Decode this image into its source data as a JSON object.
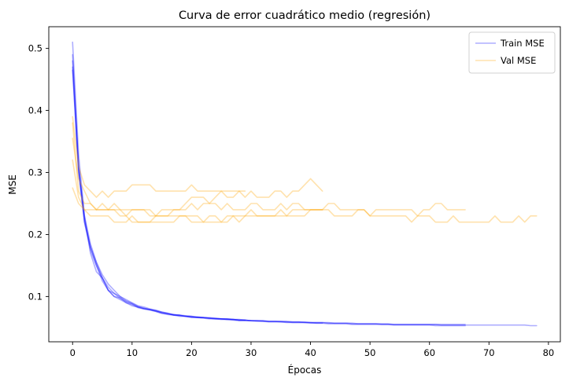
{
  "chart_data": {
    "type": "line",
    "title": "Curva de error cuadrático medio (regresión)",
    "xlabel": "Épocas",
    "ylabel": "MSE",
    "xlim": [
      -4,
      82
    ],
    "ylim": [
      0.027,
      0.535
    ],
    "xticks": [
      0,
      10,
      20,
      30,
      40,
      50,
      60,
      70,
      80
    ],
    "yticks": [
      0.1,
      0.2,
      0.3,
      0.4,
      0.5
    ],
    "grid": false,
    "legend": {
      "position": "top-right",
      "entries": [
        {
          "label": "Train MSE",
          "color": "#0000ff"
        },
        {
          "label": "Val MSE",
          "color": "#ffa500"
        }
      ]
    },
    "series": [
      {
        "group": "Train MSE",
        "color": "#0000ff",
        "values": [
          0.51,
          0.33,
          0.23,
          0.17,
          0.14,
          0.13,
          0.11,
          0.105,
          0.1,
          0.095,
          0.09,
          0.085,
          0.083,
          0.08,
          0.078,
          0.075,
          0.073,
          0.07,
          0.07,
          0.068,
          0.067,
          0.066,
          0.066,
          0.065,
          0.064,
          0.064,
          0.063,
          0.063,
          0.062,
          0.062,
          0.061,
          0.061,
          0.06,
          0.06,
          0.06,
          0.059,
          0.059,
          0.058,
          0.058,
          0.058,
          0.058,
          0.057,
          0.057
        ]
      },
      {
        "group": "Train MSE",
        "color": "#0000ff",
        "values": [
          0.48,
          0.31,
          0.22,
          0.175,
          0.15,
          0.125,
          0.11,
          0.1,
          0.095,
          0.09,
          0.087,
          0.082,
          0.08,
          0.079,
          0.076,
          0.073,
          0.071,
          0.07,
          0.068,
          0.068,
          0.066,
          0.066,
          0.065,
          0.064,
          0.064,
          0.063,
          0.063,
          0.062,
          0.061,
          0.061,
          0.061,
          0.06,
          0.06,
          0.059,
          0.059,
          0.059,
          0.058,
          0.058,
          0.058,
          0.058,
          0.057,
          0.057,
          0.057,
          0.056,
          0.056,
          0.056,
          0.056,
          0.055,
          0.055,
          0.055,
          0.055,
          0.055,
          0.055,
          0.055,
          0.054,
          0.054,
          0.054,
          0.054,
          0.054,
          0.054,
          0.054,
          0.053,
          0.053,
          0.053,
          0.053,
          0.053,
          0.053
        ]
      },
      {
        "group": "Train MSE",
        "color": "#0000ff",
        "values": [
          0.465,
          0.305,
          0.225,
          0.18,
          0.15,
          0.13,
          0.115,
          0.105,
          0.097,
          0.092,
          0.088,
          0.083,
          0.081,
          0.079,
          0.077,
          0.074,
          0.072,
          0.071,
          0.069,
          0.068,
          0.068,
          0.066,
          0.066,
          0.065,
          0.065,
          0.064,
          0.064,
          0.063,
          0.062,
          0.062,
          0.061,
          0.061,
          0.061,
          0.06,
          0.06,
          0.06,
          0.06,
          0.059,
          0.059,
          0.059,
          0.058,
          0.058,
          0.058,
          0.058,
          0.057,
          0.057,
          0.057,
          0.057,
          0.056,
          0.056,
          0.056,
          0.056,
          0.056,
          0.056,
          0.055,
          0.055,
          0.055,
          0.055,
          0.055,
          0.055,
          0.055,
          0.055,
          0.054,
          0.054,
          0.054,
          0.054,
          0.054,
          0.054,
          0.054,
          0.054,
          0.054,
          0.054,
          0.054,
          0.054,
          0.054,
          0.054,
          0.054,
          0.053,
          0.053
        ]
      },
      {
        "group": "Train MSE",
        "color": "#0000ff",
        "values": [
          0.47,
          0.3,
          0.22,
          0.18,
          0.155,
          0.13,
          0.11,
          0.1,
          0.098,
          0.09,
          0.085,
          0.083,
          0.08,
          0.078,
          0.076,
          0.073,
          0.072,
          0.07,
          0.07,
          0.068,
          0.067,
          0.067,
          0.066,
          0.065,
          0.064,
          0.064,
          0.063,
          0.063,
          0.062,
          0.062,
          0.061,
          0.061,
          0.061,
          0.06,
          0.06,
          0.06,
          0.059,
          0.059,
          0.059,
          0.058,
          0.058,
          0.058,
          0.058,
          0.057,
          0.057,
          0.057,
          0.057,
          0.056,
          0.056,
          0.056,
          0.056,
          0.056,
          0.055,
          0.055,
          0.055,
          0.055,
          0.055,
          0.055,
          0.055,
          0.055,
          0.055,
          0.055,
          0.055,
          0.055,
          0.055,
          0.055,
          0.055
        ]
      },
      {
        "group": "Train MSE",
        "color": "#0000ff",
        "values": [
          0.49,
          0.31,
          0.23,
          0.185,
          0.155,
          0.135,
          0.12,
          0.11,
          0.1,
          0.093,
          0.089,
          0.084,
          0.081,
          0.079,
          0.077,
          0.075,
          0.073,
          0.071,
          0.07,
          0.069,
          0.068,
          0.067,
          0.066,
          0.066,
          0.065,
          0.064,
          0.064,
          0.063,
          0.063,
          0.062
        ]
      },
      {
        "group": "Val MSE",
        "color": "#ffa500",
        "values": [
          0.39,
          0.31,
          0.28,
          0.27,
          0.26,
          0.27,
          0.26,
          0.27,
          0.27,
          0.27,
          0.28,
          0.28,
          0.28,
          0.28,
          0.27,
          0.27,
          0.27,
          0.27,
          0.27,
          0.27,
          0.28,
          0.27,
          0.27,
          0.27,
          0.27,
          0.27,
          0.27,
          0.27,
          0.27,
          0.27
        ]
      },
      {
        "group": "Val MSE",
        "color": "#ffa500",
        "values": [
          0.355,
          0.29,
          0.27,
          0.25,
          0.24,
          0.25,
          0.24,
          0.24,
          0.24,
          0.23,
          0.24,
          0.24,
          0.24,
          0.24,
          0.23,
          0.24,
          0.24,
          0.24,
          0.24,
          0.25,
          0.26,
          0.26,
          0.26,
          0.25,
          0.26,
          0.27,
          0.26,
          0.26,
          0.27,
          0.26,
          0.27,
          0.26,
          0.26,
          0.26,
          0.27,
          0.27,
          0.26,
          0.27,
          0.27,
          0.28,
          0.29,
          0.28,
          0.27
        ]
      },
      {
        "group": "Val MSE",
        "color": "#ffa500",
        "values": [
          0.32,
          0.26,
          0.24,
          0.23,
          0.23,
          0.23,
          0.23,
          0.22,
          0.22,
          0.22,
          0.23,
          0.22,
          0.22,
          0.22,
          0.23,
          0.23,
          0.23,
          0.23,
          0.23,
          0.23,
          0.23,
          0.23,
          0.22,
          0.23,
          0.23,
          0.22,
          0.23,
          0.23,
          0.23,
          0.23,
          0.23,
          0.23,
          0.23,
          0.23,
          0.23,
          0.23,
          0.23,
          0.23,
          0.23,
          0.23,
          0.24,
          0.24,
          0.24,
          0.24,
          0.23,
          0.23,
          0.23,
          0.23,
          0.24,
          0.24,
          0.23,
          0.23,
          0.23,
          0.23,
          0.23,
          0.23,
          0.23,
          0.22,
          0.23,
          0.23,
          0.23,
          0.22,
          0.22,
          0.22,
          0.23,
          0.22,
          0.22,
          0.22,
          0.22,
          0.22,
          0.22,
          0.23,
          0.22,
          0.22,
          0.22,
          0.23,
          0.22,
          0.23,
          0.23
        ]
      },
      {
        "group": "Val MSE",
        "color": "#ffa500",
        "values": [
          0.275,
          0.25,
          0.24,
          0.24,
          0.24,
          0.24,
          0.24,
          0.24,
          0.23,
          0.23,
          0.22,
          0.22,
          0.22,
          0.22,
          0.22,
          0.22,
          0.22,
          0.22,
          0.23,
          0.23,
          0.22,
          0.22,
          0.22,
          0.22,
          0.22,
          0.22,
          0.22,
          0.23,
          0.22,
          0.23,
          0.24,
          0.23,
          0.23,
          0.23,
          0.23,
          0.24,
          0.23,
          0.24,
          0.24,
          0.24,
          0.24,
          0.24,
          0.24,
          0.25,
          0.25,
          0.24,
          0.24,
          0.24,
          0.24,
          0.24,
          0.23,
          0.24,
          0.24,
          0.24,
          0.24,
          0.24,
          0.24,
          0.24,
          0.23,
          0.24,
          0.24,
          0.25,
          0.25,
          0.24,
          0.24,
          0.24,
          0.24
        ]
      },
      {
        "group": "Val MSE",
        "color": "#ffa500",
        "values": [
          0.38,
          0.27,
          0.25,
          0.25,
          0.24,
          0.24,
          0.24,
          0.25,
          0.24,
          0.24,
          0.24,
          0.24,
          0.24,
          0.23,
          0.23,
          0.23,
          0.23,
          0.24,
          0.24,
          0.24,
          0.25,
          0.24,
          0.25,
          0.25,
          0.25,
          0.24,
          0.25,
          0.24,
          0.24,
          0.24,
          0.25,
          0.25,
          0.24,
          0.24,
          0.24,
          0.25,
          0.24,
          0.25,
          0.25,
          0.24,
          0.24,
          0.24,
          0.24
        ]
      }
    ]
  }
}
